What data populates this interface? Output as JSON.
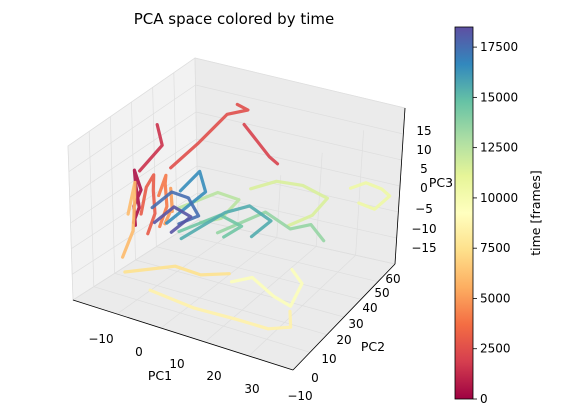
{
  "chart_data": {
    "type": "scatter3d",
    "title": "PCA space colored by time",
    "xlabel": "PC1",
    "ylabel": "PC2",
    "zlabel": "PC3",
    "x_ticks": [
      "−10",
      "0",
      "10",
      "20",
      "30"
    ],
    "y_ticks": [
      "−10",
      "0",
      "10",
      "20",
      "30",
      "40",
      "50",
      "60"
    ],
    "z_ticks": [
      "15",
      "10",
      "5",
      "0",
      "−5",
      "−10",
      "−15"
    ],
    "xlim": [
      -15,
      35
    ],
    "ylim": [
      -12,
      62
    ],
    "zlim": [
      -20,
      20
    ],
    "grid": true,
    "colormap": "Spectral",
    "colorbar": {
      "label": "time [frames]",
      "ticks": [
        "17500",
        "15000",
        "12500",
        "10000",
        "7500",
        "5000",
        "2500",
        "0"
      ],
      "range": [
        0,
        18500
      ],
      "colors": [
        "#9e0142",
        "#d53e4f",
        "#f46d43",
        "#fdae61",
        "#fee08b",
        "#ffffbf",
        "#e6f598",
        "#abdda4",
        "#66c2a5",
        "#3288bd",
        "#5e4fa2"
      ]
    },
    "series": [
      {
        "time": 500,
        "points": [
          [
            -12,
            18,
            -8
          ],
          [
            -13,
            20,
            -4
          ],
          [
            -12,
            22,
            0
          ],
          [
            -13,
            21,
            5
          ],
          [
            -12,
            19,
            2
          ],
          [
            -11,
            18,
            -3
          ],
          [
            -12,
            17,
            -7
          ]
        ]
      },
      {
        "time": 1500,
        "points": [
          [
            -11,
            30,
            15
          ],
          [
            -10,
            30,
            10
          ],
          [
            -12,
            26,
            6
          ],
          [
            -13,
            24,
            4
          ]
        ]
      },
      {
        "time": 2000,
        "points": [
          [
            5,
            40,
            18
          ],
          [
            7,
            42,
            14
          ],
          [
            9,
            44,
            10
          ],
          [
            10,
            46,
            8
          ]
        ]
      },
      {
        "time": 2500,
        "points": [
          [
            2,
            44,
            21
          ],
          [
            4,
            45,
            20
          ],
          [
            0,
            43,
            18
          ],
          [
            -5,
            38,
            10
          ],
          [
            -9,
            32,
            4
          ]
        ]
      },
      {
        "time": 3000,
        "points": [
          [
            -10,
            20,
            -10
          ],
          [
            -9,
            22,
            -5
          ],
          [
            -10,
            24,
            0
          ],
          [
            -9,
            22,
            5
          ],
          [
            -10,
            20,
            2
          ],
          [
            -11,
            19,
            -5
          ]
        ]
      },
      {
        "time": 4000,
        "points": [
          [
            -8,
            22,
            -8
          ],
          [
            -7,
            24,
            -3
          ],
          [
            -8,
            26,
            2
          ],
          [
            -7,
            24,
            5
          ],
          [
            -8,
            22,
            0
          ]
        ]
      },
      {
        "time": 5000,
        "points": [
          [
            -6,
            20,
            -6
          ],
          [
            -5,
            22,
            -2
          ],
          [
            -6,
            24,
            2
          ],
          [
            -5,
            22,
            -3
          ]
        ]
      },
      {
        "time": 6000,
        "points": [
          [
            -12,
            10,
            -14
          ],
          [
            -11,
            14,
            -8
          ],
          [
            -12,
            18,
            -2
          ],
          [
            -11,
            16,
            4
          ],
          [
            -12,
            14,
            -4
          ]
        ]
      },
      {
        "time": 7500,
        "points": [
          [
            -10,
            6,
            -16
          ],
          [
            -5,
            8,
            -14
          ],
          [
            0,
            10,
            -12
          ],
          [
            5,
            12,
            -13
          ],
          [
            10,
            16,
            -12
          ]
        ]
      },
      {
        "time": 8500,
        "points": [
          [
            0,
            -5,
            -14
          ],
          [
            10,
            -5,
            -15
          ],
          [
            20,
            -6,
            -14
          ],
          [
            28,
            -8,
            -13
          ],
          [
            32,
            -5,
            -12
          ],
          [
            30,
            0,
            -10
          ]
        ]
      },
      {
        "time": 9500,
        "points": [
          [
            16,
            2,
            -8
          ],
          [
            20,
            4,
            -6
          ],
          [
            24,
            6,
            -10
          ],
          [
            27,
            8,
            -12
          ],
          [
            29,
            10,
            -6
          ],
          [
            26,
            12,
            -4
          ]
        ]
      },
      {
        "time": 10500,
        "points": [
          [
            25,
            50,
            6
          ],
          [
            27,
            54,
            7
          ],
          [
            29,
            58,
            5
          ],
          [
            30,
            60,
            3
          ],
          [
            28,
            56,
            0
          ],
          [
            26,
            52,
            2
          ]
        ]
      },
      {
        "time": 11500,
        "points": [
          [
            10,
            30,
            6
          ],
          [
            14,
            35,
            8
          ],
          [
            18,
            40,
            7
          ],
          [
            22,
            44,
            4
          ],
          [
            20,
            40,
            0
          ],
          [
            16,
            36,
            -3
          ]
        ]
      },
      {
        "time": 12500,
        "points": [
          [
            -4,
            22,
            -2
          ],
          [
            0,
            24,
            1
          ],
          [
            4,
            26,
            4
          ],
          [
            8,
            28,
            3
          ],
          [
            5,
            25,
            -2
          ],
          [
            1,
            23,
            -4
          ]
        ]
      },
      {
        "time": 13500,
        "points": [
          [
            6,
            20,
            -4
          ],
          [
            10,
            24,
            -1
          ],
          [
            14,
            28,
            2
          ],
          [
            18,
            32,
            -2
          ],
          [
            22,
            34,
            0
          ],
          [
            24,
            36,
            -4
          ]
        ]
      },
      {
        "time": 14500,
        "points": [
          [
            -2,
            18,
            -6
          ],
          [
            2,
            20,
            -3
          ],
          [
            6,
            22,
            0
          ],
          [
            10,
            24,
            -2
          ],
          [
            7,
            21,
            -5
          ]
        ]
      },
      {
        "time": 15500,
        "points": [
          [
            0,
            14,
            -6
          ],
          [
            4,
            18,
            -2
          ],
          [
            8,
            20,
            2
          ],
          [
            12,
            24,
            4
          ],
          [
            16,
            26,
            1
          ],
          [
            13,
            22,
            -3
          ]
        ]
      },
      {
        "time": 16500,
        "points": [
          [
            -4,
            16,
            -4
          ],
          [
            -1,
            20,
            0
          ],
          [
            2,
            24,
            4
          ],
          [
            0,
            26,
            8
          ],
          [
            -3,
            22,
            3
          ]
        ]
      },
      {
        "time": 17500,
        "points": [
          [
            -8,
            18,
            -2
          ],
          [
            -5,
            22,
            2
          ],
          [
            -2,
            24,
            1
          ],
          [
            1,
            22,
            -2
          ],
          [
            -2,
            18,
            -4
          ]
        ]
      },
      {
        "time": 18300,
        "points": [
          [
            -6,
            14,
            -4
          ],
          [
            -3,
            18,
            0
          ],
          [
            0,
            20,
            -2
          ],
          [
            -3,
            16,
            -6
          ]
        ]
      }
    ]
  }
}
